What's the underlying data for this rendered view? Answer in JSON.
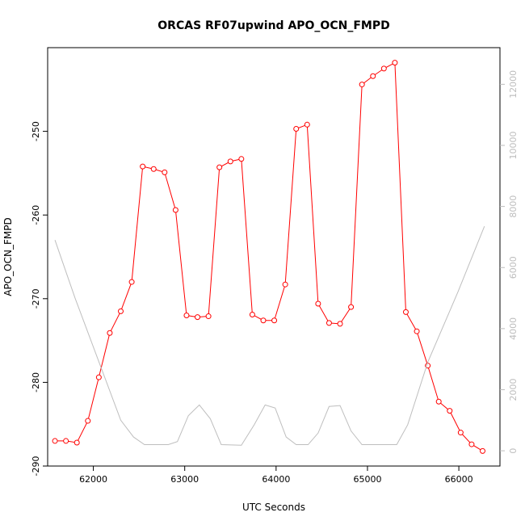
{
  "chart_data": {
    "type": "line",
    "title": "ORCAS RF07upwind APO_OCN_FMPD",
    "xlabel": "UTC Seconds",
    "ylabel": "APO_OCN_FMPD",
    "y2label": "",
    "xlim": [
      61500,
      66450
    ],
    "ylim": [
      -290,
      -240
    ],
    "y2lim": [
      -500,
      13200
    ],
    "x_ticks": [
      62000,
      63000,
      64000,
      65000,
      66000
    ],
    "y_ticks": [
      -290,
      -280,
      -270,
      -260,
      -250
    ],
    "y2_ticks": [
      0,
      2000,
      4000,
      6000,
      8000,
      10000,
      12000
    ],
    "grid": false,
    "legend": "none",
    "colors": {
      "primary": "#ff0000",
      "secondary": "#bebebe",
      "axis": "#000000",
      "axis_right": "#bdbdbd"
    },
    "series": [
      {
        "axis": "left",
        "style": "line+open-circles",
        "points": [
          [
            61580,
            -287.0
          ],
          [
            61700,
            -287.0
          ],
          [
            61820,
            -287.2
          ],
          [
            61940,
            -284.6
          ],
          [
            62060,
            -279.4
          ],
          [
            62180,
            -274.1
          ],
          [
            62300,
            -271.5
          ],
          [
            62420,
            -268.0
          ],
          [
            62540,
            -254.2
          ],
          [
            62660,
            -254.5
          ],
          [
            62780,
            -254.9
          ],
          [
            62900,
            -259.4
          ],
          [
            63020,
            -272.0
          ],
          [
            63140,
            -272.2
          ],
          [
            63260,
            -272.1
          ],
          [
            63380,
            -254.3
          ],
          [
            63500,
            -253.6
          ],
          [
            63620,
            -253.3
          ],
          [
            63740,
            -271.9
          ],
          [
            63860,
            -272.6
          ],
          [
            63980,
            -272.6
          ],
          [
            64100,
            -268.3
          ],
          [
            64220,
            -249.7
          ],
          [
            64340,
            -249.2
          ],
          [
            64460,
            -270.6
          ],
          [
            64580,
            -272.9
          ],
          [
            64700,
            -273.0
          ],
          [
            64820,
            -271.0
          ],
          [
            64940,
            -244.4
          ],
          [
            65060,
            -243.4
          ],
          [
            65180,
            -242.5
          ],
          [
            65300,
            -241.8
          ],
          [
            65420,
            -271.6
          ],
          [
            65540,
            -273.9
          ],
          [
            65660,
            -278.0
          ],
          [
            65780,
            -282.3
          ],
          [
            65900,
            -283.4
          ],
          [
            66020,
            -286.0
          ],
          [
            66140,
            -287.4
          ],
          [
            66260,
            -288.2
          ]
        ]
      },
      {
        "axis": "right",
        "style": "line",
        "points": [
          [
            61580,
            6900
          ],
          [
            61800,
            5000
          ],
          [
            62100,
            2600
          ],
          [
            62300,
            1000
          ],
          [
            62440,
            450
          ],
          [
            62560,
            200
          ],
          [
            62820,
            200
          ],
          [
            62920,
            300
          ],
          [
            63040,
            1150
          ],
          [
            63160,
            1500
          ],
          [
            63280,
            1050
          ],
          [
            63400,
            200
          ],
          [
            63620,
            180
          ],
          [
            63760,
            850
          ],
          [
            63880,
            1500
          ],
          [
            63990,
            1400
          ],
          [
            64110,
            450
          ],
          [
            64220,
            200
          ],
          [
            64350,
            200
          ],
          [
            64460,
            580
          ],
          [
            64580,
            1450
          ],
          [
            64700,
            1480
          ],
          [
            64820,
            650
          ],
          [
            64940,
            200
          ],
          [
            65100,
            200
          ],
          [
            65320,
            200
          ],
          [
            65440,
            850
          ],
          [
            65660,
            2900
          ],
          [
            65990,
            5200
          ],
          [
            66280,
            7350
          ]
        ]
      }
    ]
  }
}
